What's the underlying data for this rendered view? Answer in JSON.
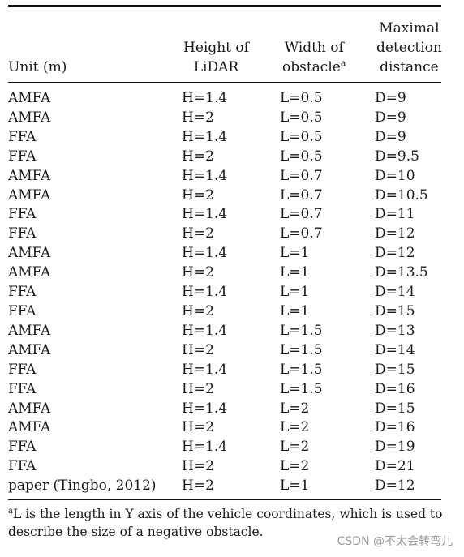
{
  "table": {
    "headers": {
      "unit": "Unit (m)",
      "height_line1": "Height of",
      "height_line2": "LiDAR",
      "width_line1": "Width of",
      "width_line2": "obstacle",
      "width_marker": "a",
      "dist_line1": "Maximal",
      "dist_line2": "detection",
      "dist_line3": "distance"
    },
    "rows": [
      {
        "unit": "AMFA",
        "height": "H=1.4",
        "width": "L=0.5",
        "distance": "D=9"
      },
      {
        "unit": "AMFA",
        "height": "H=2",
        "width": "L=0.5",
        "distance": "D=9"
      },
      {
        "unit": "FFA",
        "height": "H=1.4",
        "width": "L=0.5",
        "distance": "D=9"
      },
      {
        "unit": "FFA",
        "height": "H=2",
        "width": "L=0.5",
        "distance": "D=9.5"
      },
      {
        "unit": "AMFA",
        "height": "H=1.4",
        "width": "L=0.7",
        "distance": "D=10"
      },
      {
        "unit": "AMFA",
        "height": "H=2",
        "width": "L=0.7",
        "distance": "D=10.5"
      },
      {
        "unit": "FFA",
        "height": "H=1.4",
        "width": "L=0.7",
        "distance": "D=11"
      },
      {
        "unit": "FFA",
        "height": "H=2",
        "width": "L=0.7",
        "distance": "D=12"
      },
      {
        "unit": "AMFA",
        "height": "H=1.4",
        "width": "L=1",
        "distance": "D=12"
      },
      {
        "unit": "AMFA",
        "height": "H=2",
        "width": "L=1",
        "distance": "D=13.5"
      },
      {
        "unit": "FFA",
        "height": "H=1.4",
        "width": "L=1",
        "distance": "D=14"
      },
      {
        "unit": "FFA",
        "height": "H=2",
        "width": "L=1",
        "distance": "D=15"
      },
      {
        "unit": "AMFA",
        "height": "H=1.4",
        "width": "L=1.5",
        "distance": "D=13"
      },
      {
        "unit": "AMFA",
        "height": "H=2",
        "width": "L=1.5",
        "distance": "D=14"
      },
      {
        "unit": "FFA",
        "height": "H=1.4",
        "width": "L=1.5",
        "distance": "D=15"
      },
      {
        "unit": "FFA",
        "height": "H=2",
        "width": "L=1.5",
        "distance": "D=16"
      },
      {
        "unit": "AMFA",
        "height": "H=1.4",
        "width": "L=2",
        "distance": "D=15"
      },
      {
        "unit": "AMFA",
        "height": "H=2",
        "width": "L=2",
        "distance": "D=16"
      },
      {
        "unit": "FFA",
        "height": "H=1.4",
        "width": "L=2",
        "distance": "D=19"
      },
      {
        "unit": "FFA",
        "height": "H=2",
        "width": "L=2",
        "distance": "D=21"
      },
      {
        "unit": "paper (Tingbo, 2012)",
        "height": "H=2",
        "width": "L=1",
        "distance": "D=12"
      }
    ]
  },
  "footnote": {
    "marker": "a",
    "text": "L is the length in Y axis of the vehicle coordinates, which is used to describe the size of a negative obstacle."
  },
  "watermark": "CSDN @不太会转弯儿"
}
